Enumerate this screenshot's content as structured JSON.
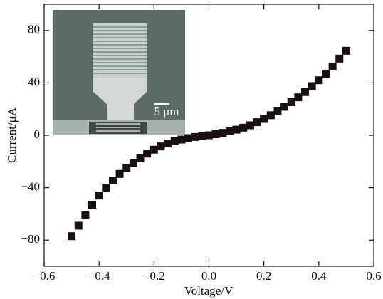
{
  "chart_data": {
    "type": "scatter",
    "x_label": "Voltage/V",
    "y_label": "Current/μA",
    "annotation": "5 μm",
    "x": [
      -0.5,
      -0.475,
      -0.45,
      -0.425,
      -0.4,
      -0.375,
      -0.35,
      -0.325,
      -0.3,
      -0.275,
      -0.25,
      -0.225,
      -0.2,
      -0.175,
      -0.15,
      -0.125,
      -0.1,
      -0.075,
      -0.05,
      -0.025,
      0,
      0.025,
      0.05,
      0.075,
      0.1,
      0.125,
      0.15,
      0.175,
      0.2,
      0.225,
      0.25,
      0.275,
      0.3,
      0.325,
      0.35,
      0.375,
      0.4,
      0.425,
      0.45,
      0.475,
      0.5
    ],
    "values": [
      -77,
      -69,
      -61,
      -53,
      -46,
      -40,
      -34.5,
      -29.5,
      -25,
      -21,
      -17.5,
      -14,
      -11,
      -8.5,
      -6.3,
      -4.6,
      -3.3,
      -2.2,
      -1.3,
      -0.6,
      0,
      0.8,
      1.8,
      3,
      4.3,
      5.8,
      7.6,
      10,
      12.5,
      15.3,
      18.5,
      21.8,
      25.3,
      29,
      33,
      37.5,
      42,
      47,
      52.5,
      58.5,
      64.5
    ],
    "color": "#1a1010",
    "xlim": [
      -0.6,
      0.6
    ],
    "xticks": [
      {
        "value": -0.6,
        "label": "−0.6"
      },
      {
        "value": -0.4,
        "label": "−0.4"
      },
      {
        "value": -0.2,
        "label": "−0.2"
      },
      {
        "value": 0,
        "label": "0.0"
      },
      0.2,
      0.4,
      0.6
    ],
    "ylim": [
      -100,
      100
    ],
    "yticks": [
      {
        "value": -80,
        "label": "−80"
      },
      {
        "value": -40,
        "label": "−40"
      },
      0,
      40,
      80
    ]
  }
}
